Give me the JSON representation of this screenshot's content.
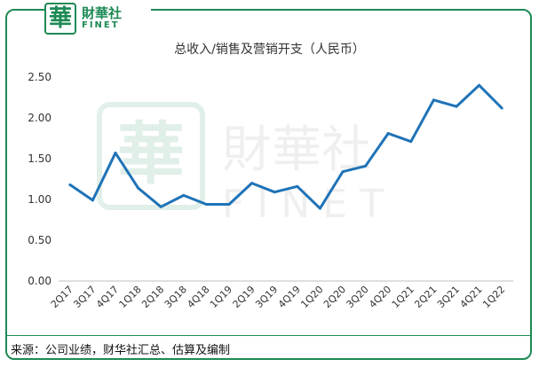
{
  "logo": {
    "mark": "華",
    "name_cn": "財華社",
    "name_en": "FINET"
  },
  "watermark": {
    "mark": "華",
    "name_cn": "財華社",
    "name_en": "FINET"
  },
  "source_note": "来源：公司业绩，财华社汇总、估算及编制",
  "colors": {
    "line": "#1f73b7",
    "brand": "#1d8a55"
  },
  "chart_data": {
    "type": "line",
    "title": "总收入/销售及营销开支（人民币）",
    "xlabel": "",
    "ylabel": "",
    "ylim": [
      0,
      2.5
    ],
    "yticks": [
      "0.00",
      "0.50",
      "1.00",
      "1.50",
      "2.00",
      "2.50"
    ],
    "grid": false,
    "legend": "none",
    "categories": [
      "2Q17",
      "3Q17",
      "4Q17",
      "1Q18",
      "2Q18",
      "3Q18",
      "4Q18",
      "1Q19",
      "2Q19",
      "3Q19",
      "4Q19",
      "1Q20",
      "2Q20",
      "3Q20",
      "4Q20",
      "1Q21",
      "2Q21",
      "3Q21",
      "4Q21",
      "1Q22"
    ],
    "series": [
      {
        "values": [
          1.18,
          0.99,
          1.57,
          1.14,
          0.91,
          1.05,
          0.94,
          0.94,
          1.2,
          1.09,
          1.16,
          0.89,
          1.34,
          1.41,
          1.81,
          1.71,
          2.22,
          2.14,
          2.4,
          2.12
        ]
      }
    ]
  }
}
